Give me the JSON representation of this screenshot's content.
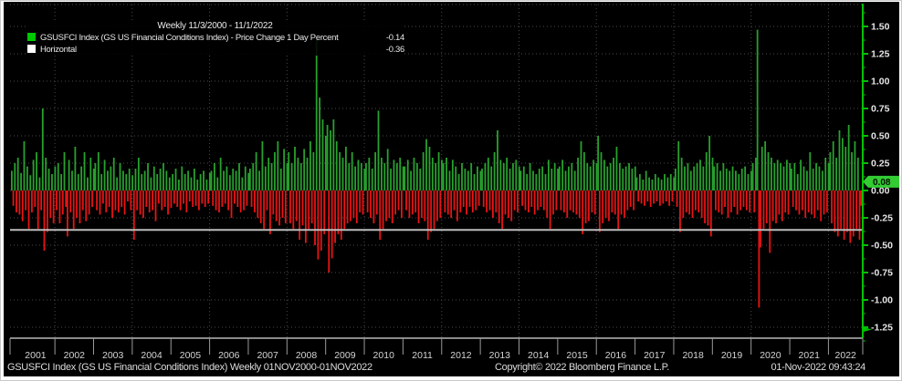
{
  "legend": {
    "title": "Weekly 11/3/2000 - 11/1/2022",
    "series": [
      {
        "swatch_color": "#00c800",
        "label": "GSUSFCI Index (GS US Financial Conditions Index) - Price Change 1 Day Percent",
        "value": "-0.14"
      },
      {
        "swatch_color": "#ffffff",
        "label": "Horizontal",
        "value": "-0.36"
      }
    ]
  },
  "footer": {
    "left": "GSUSFCI Index (GS US Financial Conditions Index)  Weekly 01NOV2000-01NOV2022",
    "center": "Copyright© 2022 Bloomberg Finance L.P.",
    "right": "01-Nov-2022 09:43:24"
  },
  "axis": {
    "last_value_badge": "0.08",
    "y_tick_labels": [
      "1.50",
      "1.25",
      "1.00",
      "0.75",
      "0.50",
      "0.25",
      "0.00",
      "-0.25",
      "-0.50",
      "-0.75",
      "-1.00",
      "-1.25"
    ]
  },
  "colors": {
    "background": "#000000",
    "up_bar": "#28a12e",
    "down_bar": "#e81414",
    "axis_green": "#00c200",
    "horizontal_line": "#bcbcbc",
    "grid": "#4a4a4a",
    "tick_text": "#e6e6e6",
    "year_text": "#d4d4d4",
    "badge_fill": "#33cc33",
    "badge_text": "#031003",
    "x_axis_line": "#8a8a8a"
  },
  "chart_data": {
    "type": "bar",
    "title": "Weekly 11/3/2000 - 11/1/2022",
    "series_name": "GSUSFCI Index (GS US Financial Conditions Index) - Price Change 1 Day Percent",
    "xlabel": "",
    "ylabel": "Price Change 1 Day Percent",
    "x_start": "2000-11-03",
    "x_end": "2022-11-01",
    "frequency": "weekly",
    "ylim": [
      -1.34,
      1.72
    ],
    "grid": "dotted",
    "legend_position": "top-left",
    "horizontal_line": -0.36,
    "last_change": -0.14,
    "last_index_level_badge": 0.08,
    "x_tick_years": [
      2001,
      2002,
      2003,
      2004,
      2005,
      2006,
      2007,
      2008,
      2009,
      2010,
      2011,
      2012,
      2013,
      2014,
      2015,
      2016,
      2017,
      2018,
      2019,
      2020,
      2021,
      2022
    ],
    "grid_years": [
      2002,
      2004,
      2006,
      2008,
      2010,
      2012,
      2014,
      2016,
      2018,
      2020,
      2022
    ],
    "y_ticks": [
      1.5,
      1.25,
      1.0,
      0.75,
      0.5,
      0.25,
      0.0,
      -0.25,
      -0.5,
      -0.75,
      -1.0,
      -1.25
    ],
    "points_per_year": 25,
    "lead_in_points": 4,
    "values_scale": 0.01,
    "values_x100": [
      18,
      -14,
      25,
      -20,
      30,
      -22,
      16,
      -28,
      45,
      -18,
      22,
      -35,
      14,
      -20,
      28,
      -15,
      35,
      -35,
      12,
      -18,
      75,
      -55,
      30,
      -38,
      20,
      -25,
      15,
      -30,
      22,
      -18,
      25,
      -30,
      15,
      -22,
      35,
      -15,
      -42,
      28,
      -20,
      18,
      -35,
      40,
      -25,
      15,
      -30,
      22,
      -18,
      35,
      -28,
      12,
      -22,
      30,
      -15,
      20,
      25,
      -18,
      35,
      -22,
      15,
      -12,
      28,
      -20,
      18,
      -15,
      22,
      -25,
      30,
      -18,
      12,
      -20,
      25,
      -15,
      18,
      -22,
      15,
      -10,
      20,
      -18,
      14,
      -45,
      20,
      -18,
      30,
      -22,
      15,
      -25,
      18,
      -15,
      25,
      -20,
      12,
      -18,
      22,
      -28,
      15,
      -12,
      20,
      -18,
      25,
      -15,
      18,
      -22,
      12,
      -16,
      15,
      -12,
      20,
      -15,
      10,
      -18,
      22,
      -12,
      15,
      -20,
      18,
      -10,
      12,
      -15,
      20,
      -14,
      10,
      -18,
      15,
      -12,
      18,
      -15,
      10,
      -12,
      16,
      18,
      -14,
      25,
      -18,
      12,
      -20,
      30,
      -15,
      18,
      -12,
      22,
      -18,
      14,
      -25,
      20,
      -12,
      18,
      -15,
      25,
      -20,
      12,
      -18,
      22,
      -14,
      16,
      20,
      -15,
      25,
      -20,
      35,
      -25,
      18,
      -30,
      45,
      -35,
      22,
      -18,
      30,
      -40,
      25,
      -22,
      35,
      -28,
      45,
      -32,
      20,
      -25,
      38,
      -30,
      25,
      35,
      -30,
      25,
      -35,
      40,
      -28,
      30,
      -45,
      25,
      -32,
      38,
      -48,
      30,
      -35,
      45,
      -30,
      35,
      -50,
      138,
      -63,
      85,
      -55,
      65,
      -40,
      50,
      60,
      -75,
      55,
      -62,
      65,
      -48,
      45,
      -40,
      35,
      -45,
      30,
      -35,
      40,
      -30,
      25,
      -28,
      35,
      -25,
      22,
      -30,
      28,
      -20,
      25,
      -22,
      20,
      25,
      -20,
      30,
      -25,
      20,
      -30,
      35,
      -22,
      73,
      -45,
      30,
      -35,
      25,
      -28,
      38,
      -25,
      20,
      -30,
      28,
      -22,
      25,
      -18,
      30,
      -25,
      22,
      22,
      -18,
      28,
      -25,
      18,
      -22,
      30,
      -20,
      25,
      -30,
      20,
      -25,
      35,
      -28,
      47,
      -45,
      40,
      -38,
      30,
      -35,
      25,
      -28,
      35,
      -25,
      28,
      25,
      -20,
      30,
      -22,
      18,
      -25,
      28,
      -18,
      22,
      -28,
      15,
      -20,
      25,
      -15,
      20,
      -22,
      18,
      -15,
      25,
      -20,
      15,
      -18,
      22,
      -14,
      18,
      20,
      -15,
      25,
      -20,
      30,
      -18,
      22,
      -25,
      35,
      -20,
      55,
      -30,
      28,
      -35,
      25,
      -22,
      30,
      -25,
      20,
      -28,
      25,
      -18,
      28,
      -20,
      22,
      18,
      -14,
      22,
      -18,
      15,
      -20,
      25,
      -15,
      18,
      -22,
      15,
      -18,
      20,
      -15,
      22,
      -18,
      15,
      -25,
      28,
      -35,
      20,
      -22,
      25,
      -18,
      20,
      22,
      -18,
      28,
      -20,
      18,
      -25,
      22,
      -18,
      25,
      -20,
      18,
      -22,
      30,
      -25,
      45,
      -40,
      35,
      -30,
      25,
      -28,
      22,
      -20,
      28,
      -22,
      25,
      50,
      -38,
      35,
      -30,
      28,
      -25,
      22,
      -28,
      25,
      -20,
      30,
      -22,
      40,
      -35,
      25,
      -22,
      20,
      -25,
      22,
      -18,
      25,
      -15,
      20,
      -18,
      22,
      12,
      -10,
      15,
      -12,
      10,
      -14,
      18,
      -10,
      12,
      -15,
      10,
      -12,
      15,
      -10,
      12,
      -14,
      10,
      -12,
      15,
      -10,
      12,
      -14,
      15,
      -10,
      12,
      20,
      -15,
      45,
      -38,
      30,
      -25,
      22,
      -20,
      25,
      -22,
      18,
      -25,
      22,
      -18,
      25,
      -20,
      28,
      -25,
      22,
      -30,
      35,
      -32,
      50,
      -42,
      30,
      22,
      -18,
      25,
      -20,
      18,
      -22,
      25,
      -15,
      20,
      -25,
      18,
      -20,
      22,
      -15,
      18,
      -22,
      15,
      -18,
      20,
      -15,
      22,
      -18,
      15,
      -20,
      18,
      25,
      -20,
      30,
      147,
      -107,
      -52,
      40,
      -35,
      45,
      -30,
      35,
      -57,
      30,
      -28,
      25,
      -30,
      28,
      -22,
      25,
      -28,
      22,
      -20,
      28,
      -22,
      25,
      20,
      -15,
      25,
      -18,
      15,
      -22,
      28,
      -18,
      22,
      -25,
      18,
      -20,
      35,
      -22,
      20,
      -25,
      25,
      -18,
      22,
      -28,
      18,
      -22,
      30,
      -20,
      25,
      35,
      -30,
      45,
      -38,
      30,
      -42,
      55,
      -35,
      48,
      -45,
      40,
      -38,
      60,
      -48,
      35,
      -42,
      45,
      -35,
      30,
      -45,
      -14
    ]
  }
}
